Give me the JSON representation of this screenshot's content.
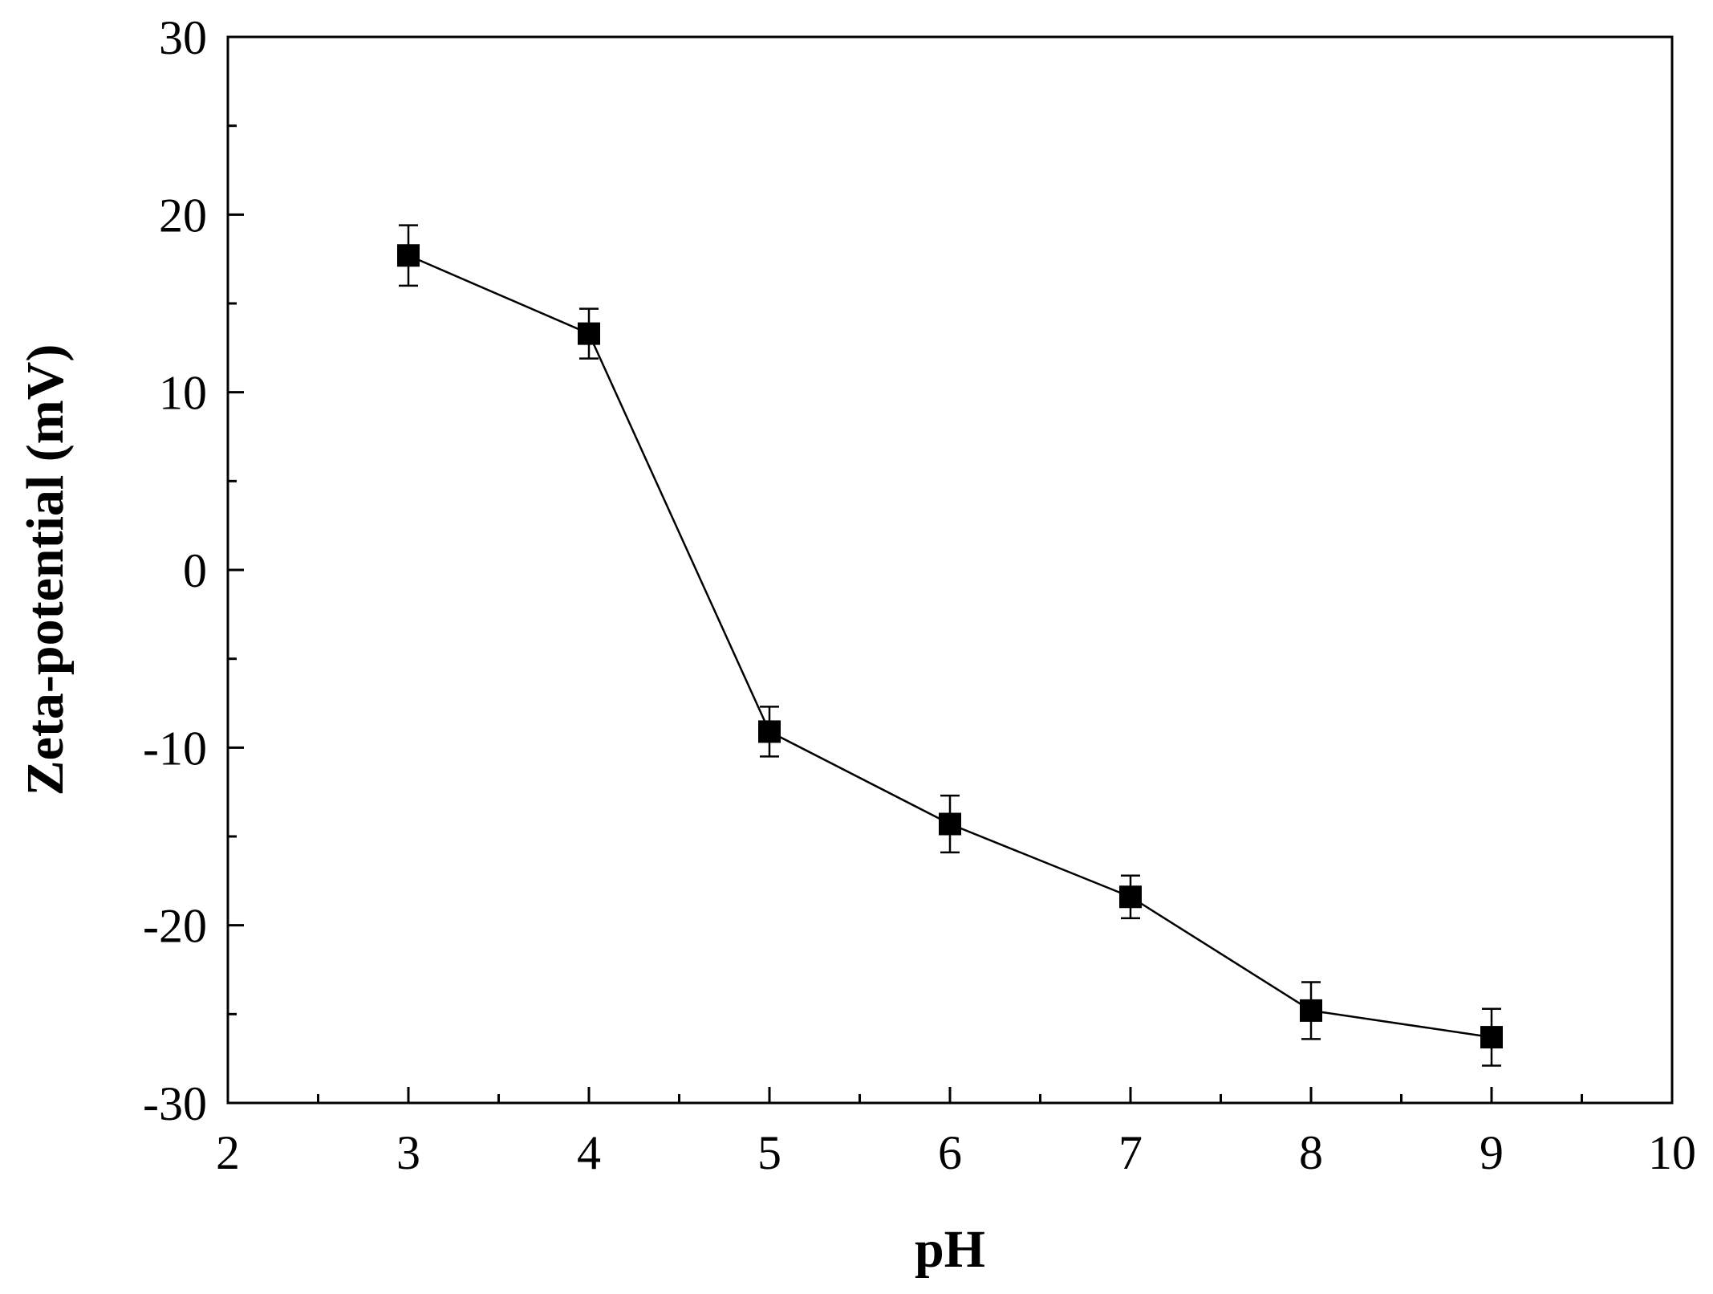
{
  "chart_data": {
    "type": "line",
    "title": "",
    "xlabel": "pH",
    "ylabel": "Zeta-potential (mV)",
    "xlim": [
      2,
      10
    ],
    "ylim": [
      -30,
      30
    ],
    "x_ticks": [
      "2",
      "3",
      "4",
      "5",
      "6",
      "7",
      "8",
      "9",
      "10"
    ],
    "y_ticks": [
      "-30",
      "-20",
      "-10",
      "0",
      "10",
      "20",
      "30"
    ],
    "grid": false,
    "legend": "none",
    "marker": "square",
    "series": [
      {
        "x": [
          3,
          4,
          5,
          6,
          7,
          8,
          9
        ],
        "y": [
          17.7,
          13.3,
          -9.1,
          -14.3,
          -18.4,
          -24.8,
          -26.3
        ],
        "error": [
          1.7,
          1.4,
          1.4,
          1.6,
          1.2,
          1.6,
          1.6
        ]
      }
    ],
    "colors": {
      "line": "#000000",
      "marker": "#000000",
      "axes": "#000000"
    }
  }
}
